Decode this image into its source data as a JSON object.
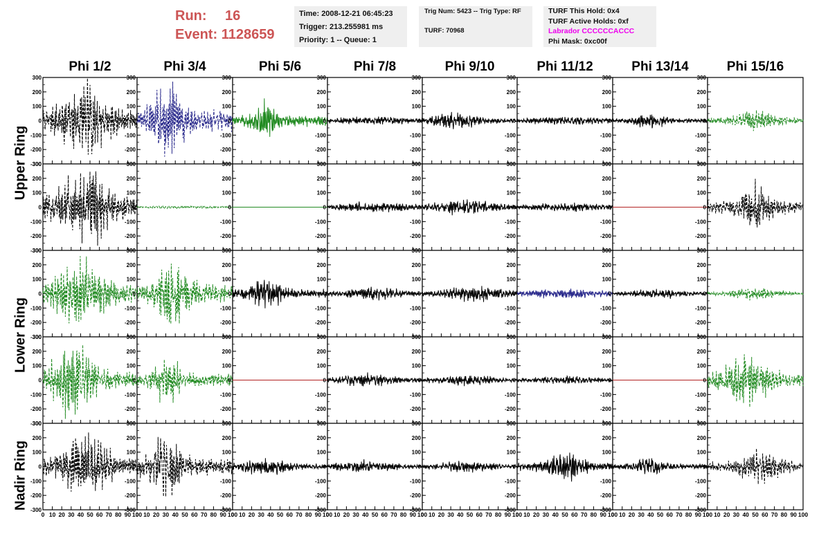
{
  "header": {
    "run_label": "Run:",
    "run_value": "16",
    "event_label": "Event:",
    "event_value": "1128659",
    "time": "Time: 2008-12-21 06:45:23",
    "trigger": "Trigger: 213.255981 ms",
    "priority": "Priority: 1 -- Queue: 1",
    "trig_num": "Trig Num: 5423 -- Trig Type: RF",
    "turf": "TURF: 70968",
    "turf_hold": "TURF This Hold: 0x4",
    "turf_active": "TURF Active Holds: 0xf",
    "labrador": "Labrador CCCCCCACCC",
    "phi_mask": "Phi Mask: 0xc00f"
  },
  "columns": [
    "Phi 1/2",
    "Phi 3/4",
    "Phi 5/6",
    "Phi 7/8",
    "Phi 9/10",
    "Phi 11/12",
    "Phi 13/14",
    "Phi 15/16"
  ],
  "ring_labels": [
    "Upper Ring",
    "Lower Ring",
    "Nadir Ring"
  ],
  "axes": {
    "y_ticks": [
      "300",
      "200",
      "100",
      "0",
      "-100",
      "-200",
      "-300"
    ],
    "x_ticks": [
      "0",
      "10",
      "20",
      "30",
      "40",
      "50",
      "60",
      "70",
      "80",
      "90",
      "100"
    ],
    "y_range": [
      -300,
      300
    ],
    "x_range": [
      0,
      100
    ]
  },
  "colors": {
    "run_text": "#cc5555",
    "labrador_text": "#ee00ee",
    "black": "#000000",
    "green": "#228b22",
    "blue": "#2a2a8c",
    "red": "#b22222"
  },
  "panels": [
    [
      {
        "color": "black",
        "style": "dashed",
        "amp": 230,
        "center": 45,
        "width": 30
      },
      {
        "color": "blue",
        "style": "dashed",
        "amp": 250,
        "center": 32,
        "width": 20
      },
      {
        "color": "green",
        "style": "solid",
        "amp": 140,
        "center": 33,
        "width": 12
      },
      {
        "color": "black",
        "style": "solid",
        "amp": 25,
        "center": 50,
        "width": 60
      },
      {
        "color": "black",
        "style": "solid",
        "amp": 55,
        "center": 35,
        "width": 30
      },
      {
        "color": "black",
        "style": "solid",
        "amp": 25,
        "center": 50,
        "width": 60
      },
      {
        "color": "black",
        "style": "solid",
        "amp": 50,
        "center": 40,
        "width": 20
      },
      {
        "color": "green",
        "style": "dashed",
        "amp": 70,
        "center": 50,
        "width": 25
      }
    ],
    [
      {
        "color": "black",
        "style": "dashed",
        "amp": 260,
        "center": 45,
        "width": 30
      },
      {
        "color": "green",
        "style": "dashed",
        "amp": 8,
        "center": 50,
        "width": 60
      },
      {
        "color": "green",
        "style": "solid",
        "amp": 0,
        "center": 50,
        "width": 60
      },
      {
        "color": "black",
        "style": "solid",
        "amp": 35,
        "center": 50,
        "width": 50
      },
      {
        "color": "black",
        "style": "solid",
        "amp": 50,
        "center": 45,
        "width": 40
      },
      {
        "color": "black",
        "style": "solid",
        "amp": 30,
        "center": 50,
        "width": 50
      },
      {
        "color": "red",
        "style": "solid",
        "amp": 0,
        "center": 50,
        "width": 60
      },
      {
        "color": "black",
        "style": "dashed",
        "amp": 150,
        "center": 50,
        "width": 20
      }
    ],
    [
      {
        "color": "green",
        "style": "dashed",
        "amp": 210,
        "center": 40,
        "width": 30
      },
      {
        "color": "green",
        "style": "dashed",
        "amp": 220,
        "center": 38,
        "width": 20
      },
      {
        "color": "black",
        "style": "solid",
        "amp": 100,
        "center": 35,
        "width": 20
      },
      {
        "color": "black",
        "style": "solid",
        "amp": 40,
        "center": 50,
        "width": 40
      },
      {
        "color": "black",
        "style": "solid",
        "amp": 55,
        "center": 55,
        "width": 35
      },
      {
        "color": "blue",
        "style": "solid",
        "amp": 30,
        "center": 50,
        "width": 60
      },
      {
        "color": "black",
        "style": "solid",
        "amp": 30,
        "center": 50,
        "width": 40
      },
      {
        "color": "green",
        "style": "dashed",
        "amp": 40,
        "center": 50,
        "width": 30
      }
    ],
    [
      {
        "color": "green",
        "style": "dashed",
        "amp": 230,
        "center": 32,
        "width": 25
      },
      {
        "color": "green",
        "style": "dashed",
        "amp": 160,
        "center": 32,
        "width": 15
      },
      {
        "color": "red",
        "style": "solid",
        "amp": 0,
        "center": 50,
        "width": 60
      },
      {
        "color": "black",
        "style": "solid",
        "amp": 40,
        "center": 45,
        "width": 40
      },
      {
        "color": "black",
        "style": "solid",
        "amp": 35,
        "center": 45,
        "width": 40
      },
      {
        "color": "black",
        "style": "solid",
        "amp": 25,
        "center": 50,
        "width": 50
      },
      {
        "color": "red",
        "style": "solid",
        "amp": 0,
        "center": 50,
        "width": 60
      },
      {
        "color": "green",
        "style": "dashed",
        "amp": 150,
        "center": 40,
        "width": 30
      }
    ],
    [
      {
        "color": "black",
        "style": "dashed",
        "amp": 210,
        "center": 45,
        "width": 30
      },
      {
        "color": "black",
        "style": "dashed",
        "amp": 220,
        "center": 30,
        "width": 18
      },
      {
        "color": "black",
        "style": "solid",
        "amp": 60,
        "center": 35,
        "width": 30
      },
      {
        "color": "black",
        "style": "solid",
        "amp": 40,
        "center": 40,
        "width": 40
      },
      {
        "color": "black",
        "style": "solid",
        "amp": 35,
        "center": 45,
        "width": 40
      },
      {
        "color": "black",
        "style": "solid",
        "amp": 90,
        "center": 50,
        "width": 25
      },
      {
        "color": "black",
        "style": "solid",
        "amp": 60,
        "center": 40,
        "width": 20
      },
      {
        "color": "black",
        "style": "dashed",
        "amp": 110,
        "center": 55,
        "width": 25
      }
    ]
  ]
}
